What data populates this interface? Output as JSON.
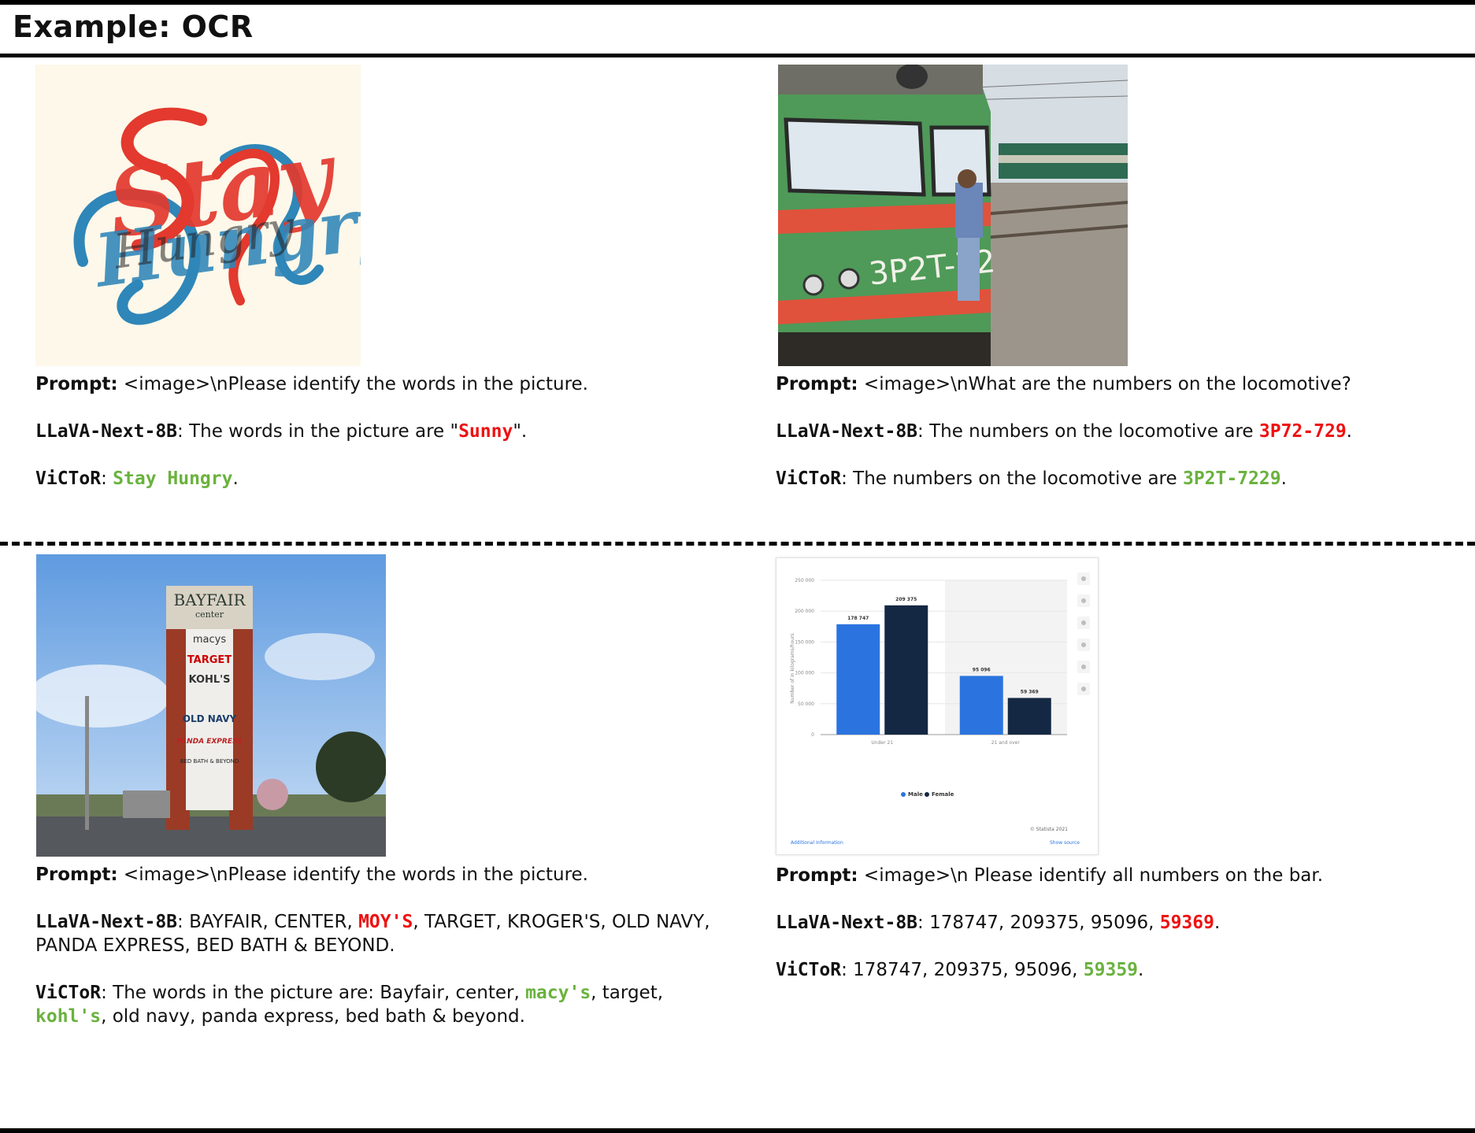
{
  "header": {
    "title": "Example: OCR"
  },
  "examples": [
    {
      "image_name": "stay-hungry",
      "image_text": [
        "Stay",
        "Hungry"
      ],
      "prompt_label": "Prompt:",
      "prompt_text": " <image>\\nPlease identify the words in the picture.",
      "llava_label": "LLaVA-Next-8B",
      "llava_pre": ": The words in the picture are \"",
      "llava_hl": "Sunny",
      "llava_post": "\".",
      "victor_label": "ViCToR",
      "victor_pre": ": ",
      "victor_hl": "Stay Hungry",
      "victor_post": "."
    },
    {
      "image_name": "locomotive",
      "image_text": [
        "3P2T-72"
      ],
      "prompt_label": "Prompt:",
      "prompt_text": " <image>\\nWhat are the numbers on the locomotive?",
      "llava_label": "LLaVA-Next-8B",
      "llava_pre": ": The numbers on the locomotive are ",
      "llava_hl": "3P72-729",
      "llava_post": ".",
      "victor_label": "ViCToR",
      "victor_pre": ": The numbers on the locomotive are ",
      "victor_hl": "3P2T-7229",
      "victor_post": "."
    },
    {
      "image_name": "bayfair-sign",
      "image_text": [
        "BAYFAIR",
        "center",
        "macys",
        "TARGET",
        "KOHL'S",
        "OLD NAVY",
        "PANDA EXPRESS",
        "BED BATH & BEYOND"
      ],
      "prompt_label": "Prompt:",
      "prompt_text": " <image>\\nPlease identify the words in the picture.",
      "llava_label": "LLaVA-Next-8B",
      "llava_pre": ": BAYFAIR, CENTER, ",
      "llava_hl": "MOY'S",
      "llava_post": ", TARGET, KROGER'S, OLD NAVY, PANDA EXPRESS, BED BATH & BEYOND.",
      "victor_label": "ViCToR",
      "victor_pre": ": The words in the picture are: Bayfair, center, ",
      "victor_hl": "macy's",
      "victor_mid": ", target, ",
      "victor_hl2": "kohl's",
      "victor_post": ", old navy, panda express, bed bath & beyond."
    },
    {
      "image_name": "bar-chart-screenshot",
      "prompt_label": "Prompt:",
      "prompt_text": " <image>\\n Please identify all numbers on the bar.",
      "llava_label": "LLaVA-Next-8B",
      "llava_pre": ": 178747, 209375, 95096, ",
      "llava_hl": "59369",
      "llava_post": ".",
      "victor_label": "ViCToR",
      "victor_pre": ": 178747, 209375, 95096, ",
      "victor_hl": "59359",
      "victor_post": "."
    }
  ],
  "chart_data": {
    "type": "bar",
    "categories": [
      "Under 21",
      "21 and over"
    ],
    "series": [
      {
        "name": "Male",
        "values": [
          178747,
          95096
        ],
        "color": "#2b74e0"
      },
      {
        "name": "Female",
        "values": [
          209375,
          59369
        ],
        "color": "#142843"
      }
    ],
    "ylabel": "Number of in kilograms/hours",
    "ylim": [
      0,
      250000
    ],
    "yticks": [
      "0",
      "50 000",
      "100 000",
      "150 000",
      "200 000",
      "250 000"
    ],
    "bar_labels": [
      "178 747",
      "209 375",
      "95 096",
      "59 369"
    ],
    "legend": [
      "Male",
      "Female"
    ],
    "legend_position": "bottom-center",
    "credit": "© Statista 2021",
    "footer_left": "Additional Information",
    "footer_right": "Show source"
  }
}
